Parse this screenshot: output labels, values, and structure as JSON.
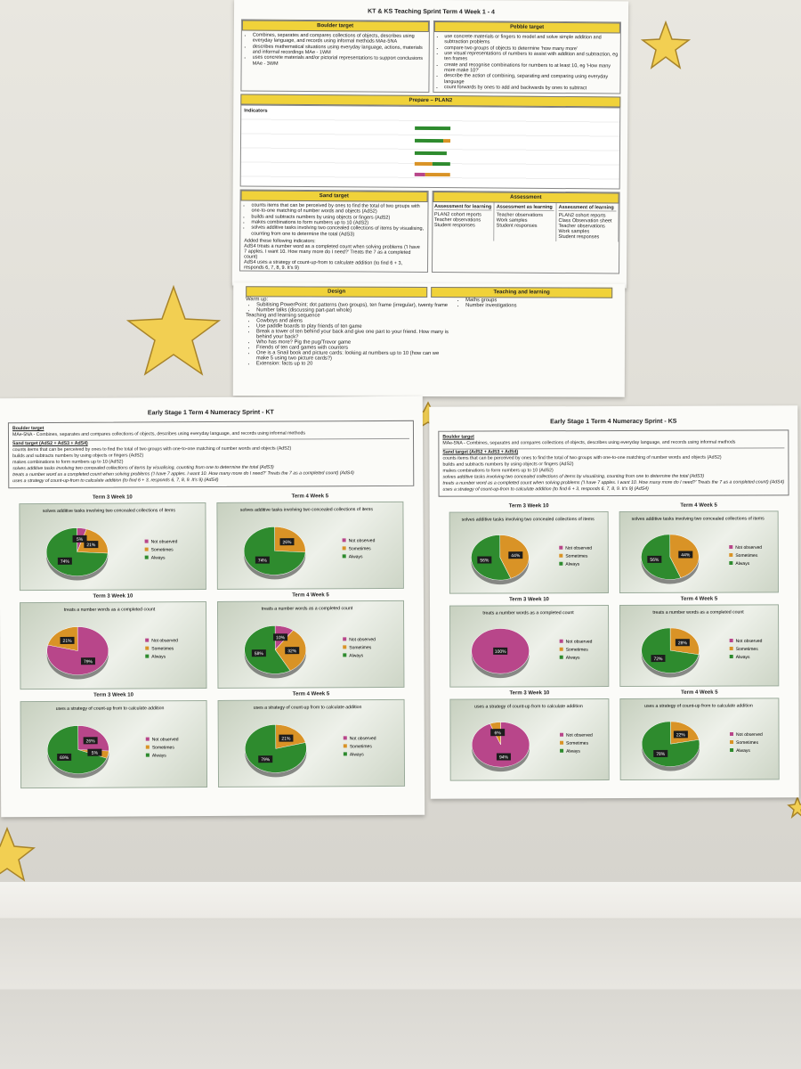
{
  "sprint_doc": {
    "title": "KT & KS Teaching Sprint Term 4 Week 1 - 4",
    "boulder": {
      "heading": "Boulder target",
      "items": [
        "Combines, separates and compares collections of objects, describes using everyday language, and records using informal methods MAe-5NA",
        "describes mathematical situations using everyday language, actions, materials and informal recordings MAe - 1WM",
        "uses concrete materials and/or pictorial representations to support conclusions MAe - 3WM"
      ]
    },
    "pebble": {
      "heading": "Pebble target",
      "items": [
        "use concrete materials or fingers to model and solve simple addition and subtraction problems",
        "compare two groups of objects to determine 'how many more'",
        "use visual representations of numbers to assist with addition and subtraction, eg ten frames",
        "create and recognise combinations for numbers to at least 10, eg 'How many more make 10?'",
        "describe the action of combining, separating and comparing using everyday language",
        "count forwards by ones to add and backwards by ones to subtract"
      ]
    },
    "prepare": {
      "heading": "Prepare – PLAN2",
      "indicators": "Indicators"
    },
    "sand": {
      "heading": "Sand target",
      "items": [
        "counts items that can be perceived by ones to find the total of two groups with one-to-one matching of number words and objects (AdS2)",
        "builds and subtracts numbers by using objects or fingers (AdS2)",
        "makes combinations to form numbers up to 10 (AdS2)",
        "solves additive tasks involving two concealed collections of items by visualising, counting from one to determine the total (AdS3)"
      ],
      "added": "Added these following indicators:",
      "extra": [
        "AdS4 treats a number word as a completed count when solving problems ('I have 7 apples. I want 10. How many more do I need?' Treats the 7 as a completed count)",
        "AdS4 uses a strategy of count-up-from to calculate addition (to find 6 + 3, responds 6, 7, 8, 9. It's 9)"
      ]
    },
    "assessment": {
      "heading": "Assessment",
      "columns": [
        {
          "heading": "Assessment for learning",
          "items": [
            "PLAN2 cohort reports",
            "Teacher observations",
            "Student responses"
          ]
        },
        {
          "heading": "Assessment as learning",
          "items": [
            "Teacher observations",
            "Work samples",
            "Student responses"
          ]
        },
        {
          "heading": "Assessment of learning",
          "items": [
            "PLAN2 cohort reports",
            "Class Observation sheet",
            "Teacher observations",
            "Work samples",
            "Student responses"
          ]
        }
      ]
    },
    "design": {
      "heading": "Design",
      "teaching_heading": "Teaching and learning",
      "warm_up": "Warm up:",
      "warm_items": [
        "Subitising PowerPoint: dot patterns (two groups), ten frame (irregular), twenty frame",
        "Number talks (discussing part-part whole)"
      ],
      "sequence_heading": "Teaching and learning sequence",
      "sequence_items": [
        "Cowboys and aliens",
        "Use paddle boards to play friends of ten game",
        "Break a tower of ten behind your back and give one part to your friend. How many is behind your back?",
        "Who has more? Pig the pug/Trevor game",
        "Friends of ten card games with counters",
        "One is a Snail book and picture cards: looking at numbers up to 10 (how can we make 5 using two picture cards?)",
        "Extension: facts up to 20"
      ],
      "side_items": [
        "Maths groups",
        "Number investigations"
      ]
    }
  },
  "posters": [
    {
      "title": "Early Stage 1 Term 4 Numeracy Sprint - KT",
      "boulder_heading": "Boulder target",
      "boulder_text": "MAe-5NA - Combines, separates and compares collections of objects, describes using everyday language, and records using informal methods",
      "sand_heading": "Sand target (AdS2 + AdS3 + AdS4)",
      "sand_lines": [
        "counts items that can be perceived by ones to find the total of two groups with one-to-one matching of number words and objects (AdS2)",
        "builds and subtracts numbers by using objects or fingers (AdS2)",
        "makes combinations to form numbers up to 10 (AdS2)",
        "solves additive tasks involving two concealed collections of items by visualising, counting from one to determine the total (AdS3)",
        "treats a number word as a completed count when solving problems ('I have 7 apples. I want 10. How many more do I need?' Treats the 7 as a completed count) (AdS4)",
        "uses a strategy of count-up-from to calculate addition (to find 6 + 3, responds 6, 7, 8, 9. It's 9) (AdS4)"
      ],
      "legend": [
        "Not observed",
        "Sometimes",
        "Always"
      ],
      "colors": [
        "#b8468a",
        "#d99326",
        "#2e8b2e"
      ],
      "charts": [
        {
          "period": "Term 3 Week 10",
          "title": "solves additive tasks involving two concealed collections of items",
          "values": [
            5,
            21,
            74
          ],
          "value_labels": [
            "5%",
            "21%",
            "74%"
          ]
        },
        {
          "period": "Term 4 Week 5",
          "title": "solves additive tasks involving two concealed collections of items",
          "values": [
            0,
            26,
            74
          ],
          "value_labels": [
            null,
            "26%",
            "74%"
          ]
        },
        {
          "period": "Term 3 Week 10",
          "title": "treats a number words as a completed count",
          "values": [
            79,
            21,
            0
          ],
          "value_labels": [
            "79%",
            "21%",
            null
          ]
        },
        {
          "period": "Term 4 Week 5",
          "title": "treats a number words as a completed count",
          "values": [
            10,
            32,
            58
          ],
          "value_labels": [
            "10%",
            "32%",
            "58%"
          ]
        },
        {
          "period": "Term 3 Week 10",
          "title": "uses a strategy of count-up from to calculate addition",
          "values": [
            26,
            5,
            69
          ],
          "value_labels": [
            "26%",
            "5%",
            "69%"
          ]
        },
        {
          "period": "Term 4 Week 5",
          "title": "uses a strategy of count-up from to calculate addition",
          "values": [
            0,
            21,
            79
          ],
          "value_labels": [
            null,
            "21%",
            "79%"
          ]
        }
      ]
    },
    {
      "title": "Early Stage 1 Term 4 Numeracy Sprint - KS",
      "boulder_heading": "Boulder target",
      "boulder_text": "MAe-5NA - Combines, separates and compares collections of objects, describes using everyday language, and records using informal methods",
      "sand_heading": "Sand target (AdS2 + AdS3 + AdS4)",
      "sand_lines": [
        "counts items that can be perceived by ones to find the total of two groups with one-to-one matching of number words and objects (AdS2)",
        "builds and subtracts numbers by using objects or fingers (AdS2)",
        "makes combinations to form numbers up to 10 (AdS2)",
        "solves additive tasks involving two concealed collections of items by visualising, counting from one to determine the total (AdS3)",
        "treats a number word as a completed count when solving problems ('I have 7 apples. I want 10. How many more do I need?' Treats the 7 as a completed count) (AdS4)",
        "uses a strategy of count-up-from to calculate addition (to find 6 + 3, responds 6, 7, 8, 9. It's 9) (AdS4)"
      ],
      "legend": [
        "Not observed",
        "Sometimes",
        "Always"
      ],
      "colors": [
        "#b8468a",
        "#d99326",
        "#2e8b2e"
      ],
      "charts": [
        {
          "period": "Term 3 Week 10",
          "title": "solves additive tasks involving two concealed collections of items",
          "values": [
            0,
            44,
            56
          ],
          "value_labels": [
            null,
            "44%",
            "56%"
          ]
        },
        {
          "period": "Term 4 Week 5",
          "title": "solves additive tasks involving two concealed collections of items",
          "values": [
            0,
            44,
            56
          ],
          "value_labels": [
            null,
            "44%",
            "56%"
          ]
        },
        {
          "period": "Term 3 Week 10",
          "title": "treats a number words as a completed count",
          "values": [
            100,
            0,
            0
          ],
          "value_labels": [
            "100%",
            null,
            null
          ]
        },
        {
          "period": "Term 4 Week 5",
          "title": "treats a number words as a completed count",
          "values": [
            0,
            28,
            72
          ],
          "value_labels": [
            null,
            "28%",
            "72%"
          ]
        },
        {
          "period": "Term 3 Week 10",
          "title": "uses a strategy of count-up from to calculate addition",
          "values": [
            94,
            6,
            0
          ],
          "value_labels": [
            "94%",
            "6%",
            null
          ]
        },
        {
          "period": "Term 4 Week 5",
          "title": "uses a strategy of count-up from to calculate addition",
          "values": [
            0,
            22,
            78
          ],
          "value_labels": [
            null,
            "22%",
            "78%"
          ]
        }
      ]
    }
  ]
}
